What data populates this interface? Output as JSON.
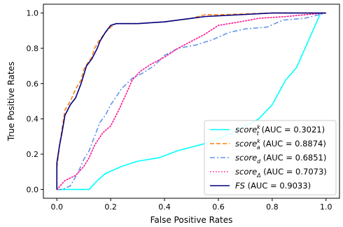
{
  "chart_data": {
    "type": "line",
    "title": "",
    "xlabel": "False Positive Rates",
    "ylabel": "True Positive Rates",
    "xlim": [
      -0.05,
      1.05
    ],
    "ylim": [
      -0.05,
      1.05
    ],
    "xticks": [
      "0.0",
      "0.2",
      "0.4",
      "0.6",
      "0.8",
      "1.0"
    ],
    "yticks": [
      "0.0",
      "0.2",
      "0.4",
      "0.6",
      "0.8",
      "1.0"
    ],
    "grid": false,
    "legend_position": "lower-right",
    "series": [
      {
        "name_base": "score",
        "name_sub": "t",
        "name_sup": "k",
        "auc_text": "(AUC = 0.3021)",
        "color": "#00ffff",
        "dash": "solid",
        "points": [
          [
            0.0,
            0.0
          ],
          [
            0.12,
            0.0
          ],
          [
            0.15,
            0.05
          ],
          [
            0.18,
            0.09
          ],
          [
            0.24,
            0.13
          ],
          [
            0.3,
            0.16
          ],
          [
            0.38,
            0.18
          ],
          [
            0.45,
            0.22
          ],
          [
            0.55,
            0.26
          ],
          [
            0.65,
            0.32
          ],
          [
            0.75,
            0.4
          ],
          [
            0.8,
            0.48
          ],
          [
            0.85,
            0.62
          ],
          [
            0.89,
            0.69
          ],
          [
            0.98,
            1.0
          ]
        ]
      },
      {
        "name_base": "score",
        "name_sub": "a",
        "name_sup": "k",
        "auc_text": "(AUC = 0.8874)",
        "color": "#ff7f0e",
        "dash": "dashed",
        "points": [
          [
            0.0,
            0.02
          ],
          [
            0.0,
            0.12
          ],
          [
            0.01,
            0.25
          ],
          [
            0.02,
            0.35
          ],
          [
            0.03,
            0.45
          ],
          [
            0.05,
            0.5
          ],
          [
            0.07,
            0.57
          ],
          [
            0.09,
            0.62
          ],
          [
            0.1,
            0.68
          ],
          [
            0.12,
            0.73
          ],
          [
            0.13,
            0.75
          ],
          [
            0.14,
            0.8
          ],
          [
            0.16,
            0.85
          ],
          [
            0.18,
            0.89
          ],
          [
            0.2,
            0.92
          ],
          [
            0.22,
            0.94
          ],
          [
            0.3,
            0.94
          ],
          [
            0.4,
            0.95
          ],
          [
            0.5,
            0.97
          ],
          [
            0.55,
            0.99
          ],
          [
            0.6,
            0.99
          ],
          [
            0.8,
            1.0
          ],
          [
            1.0,
            1.0
          ]
        ]
      },
      {
        "name_base": "score",
        "name_sub": "d",
        "name_sup": "",
        "auc_text": "(AUC = 0.6851)",
        "color": "#6495ed",
        "dash": "dashdot",
        "points": [
          [
            0.0,
            0.0
          ],
          [
            0.02,
            0.0
          ],
          [
            0.05,
            0.02
          ],
          [
            0.08,
            0.1
          ],
          [
            0.1,
            0.17
          ],
          [
            0.12,
            0.22
          ],
          [
            0.14,
            0.3
          ],
          [
            0.16,
            0.38
          ],
          [
            0.18,
            0.42
          ],
          [
            0.2,
            0.48
          ],
          [
            0.24,
            0.57
          ],
          [
            0.28,
            0.63
          ],
          [
            0.32,
            0.66
          ],
          [
            0.36,
            0.7
          ],
          [
            0.4,
            0.76
          ],
          [
            0.45,
            0.8
          ],
          [
            0.52,
            0.82
          ],
          [
            0.58,
            0.85
          ],
          [
            0.64,
            0.89
          ],
          [
            0.7,
            0.91
          ],
          [
            0.78,
            0.92
          ],
          [
            0.84,
            0.96
          ],
          [
            0.92,
            0.97
          ],
          [
            1.0,
            1.0
          ]
        ]
      },
      {
        "name_base": "score",
        "name_sub": "Δ",
        "name_sup": "",
        "auc_text": "(AUC = 0.7073)",
        "color": "#ff1493",
        "dash": "dotted",
        "points": [
          [
            0.0,
            0.0
          ],
          [
            0.03,
            0.05
          ],
          [
            0.07,
            0.08
          ],
          [
            0.1,
            0.13
          ],
          [
            0.12,
            0.18
          ],
          [
            0.14,
            0.25
          ],
          [
            0.17,
            0.32
          ],
          [
            0.2,
            0.36
          ],
          [
            0.23,
            0.45
          ],
          [
            0.26,
            0.55
          ],
          [
            0.28,
            0.62
          ],
          [
            0.31,
            0.67
          ],
          [
            0.35,
            0.71
          ],
          [
            0.4,
            0.75
          ],
          [
            0.45,
            0.8
          ],
          [
            0.5,
            0.84
          ],
          [
            0.55,
            0.88
          ],
          [
            0.6,
            0.93
          ],
          [
            0.68,
            0.95
          ],
          [
            0.75,
            0.97
          ],
          [
            0.85,
            0.98
          ],
          [
            0.92,
            0.99
          ],
          [
            1.0,
            1.0
          ]
        ]
      },
      {
        "name_base": "FS",
        "name_sub": "",
        "name_sup": "",
        "auc_text": "(AUC = 0.9033)",
        "color": "#000080",
        "dash": "solid",
        "points": [
          [
            0.0,
            0.0
          ],
          [
            0.0,
            0.15
          ],
          [
            0.01,
            0.25
          ],
          [
            0.02,
            0.33
          ],
          [
            0.03,
            0.42
          ],
          [
            0.05,
            0.48
          ],
          [
            0.07,
            0.52
          ],
          [
            0.09,
            0.6
          ],
          [
            0.11,
            0.7
          ],
          [
            0.13,
            0.74
          ],
          [
            0.15,
            0.8
          ],
          [
            0.16,
            0.84
          ],
          [
            0.18,
            0.89
          ],
          [
            0.2,
            0.93
          ],
          [
            0.22,
            0.94
          ],
          [
            0.3,
            0.94
          ],
          [
            0.4,
            0.95
          ],
          [
            0.5,
            0.97
          ],
          [
            0.55,
            0.98
          ],
          [
            0.8,
            1.0
          ],
          [
            1.0,
            1.0
          ]
        ]
      }
    ]
  }
}
